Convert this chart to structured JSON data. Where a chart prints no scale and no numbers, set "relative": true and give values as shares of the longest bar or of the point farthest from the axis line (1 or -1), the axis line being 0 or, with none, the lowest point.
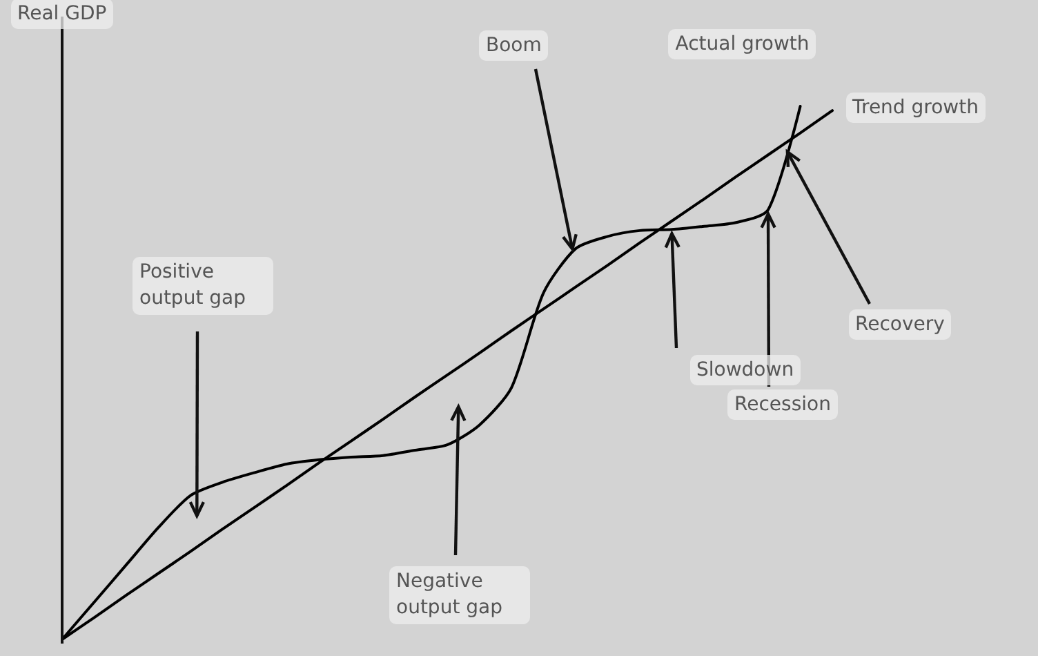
{
  "chart_data": {
    "type": "line",
    "relative": true,
    "ylabel": "Real GDP",
    "marker": "none",
    "line_style": "solid",
    "legend": false,
    "categories": [
      null,
      null,
      null,
      null,
      null,
      null,
      null,
      null,
      null,
      null,
      null,
      null,
      null,
      null,
      null,
      null,
      null,
      null,
      null,
      null,
      null,
      null,
      null,
      null,
      null
    ],
    "series": [
      {
        "name": "Actual growth",
        "color": "#000000",
        "values": [
          0,
          0.07,
          0.14,
          0.21,
          0.27,
          0.295,
          0.313,
          0.329,
          0.337,
          0.342,
          0.345,
          0.355,
          0.365,
          0.402,
          0.472,
          0.65,
          0.733,
          0.756,
          0.767,
          0.769,
          0.775,
          0.782,
          0.806,
          1,
          null
        ]
      },
      {
        "name": "Trend growth",
        "color": "#000000",
        "values": [
          0,
          0.041,
          0.083,
          0.124,
          0.165,
          0.207,
          0.248,
          0.289,
          0.331,
          0.372,
          0.413,
          0.455,
          0.496,
          0.537,
          0.579,
          0.62,
          0.661,
          0.702,
          0.744,
          0.785,
          0.826,
          0.868,
          0.909,
          0.95,
          0.992
        ]
      }
    ],
    "annotations": [
      "Positive output gap",
      "Negative output gap",
      "Boom",
      "Slowdown",
      "Recession",
      "Recovery"
    ]
  }
}
